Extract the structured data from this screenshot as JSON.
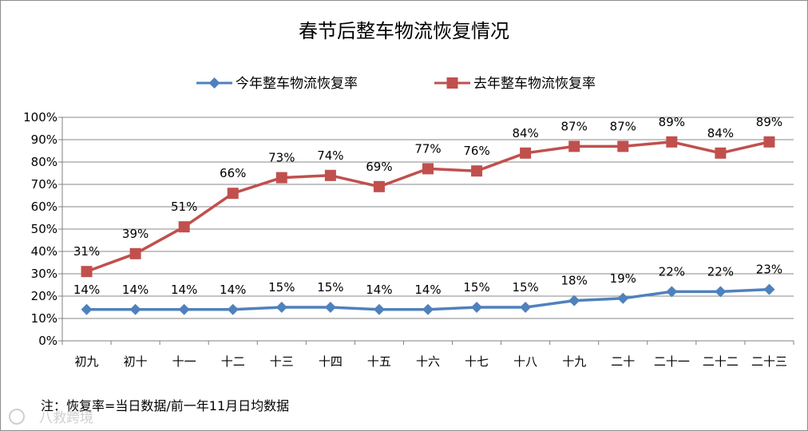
{
  "chart_data": {
    "type": "line",
    "title": "春节后整车物流恢复情况",
    "categories": [
      "初九",
      "初十",
      "十一",
      "十二",
      "十三",
      "十四",
      "十五",
      "十六",
      "十七",
      "十八",
      "十九",
      "二十",
      "二十一",
      "二十二",
      "二十三"
    ],
    "series": [
      {
        "name": "今年整车物流恢复率",
        "color": "#4f81bd",
        "marker": "diamond",
        "values": [
          14,
          14,
          14,
          14,
          15,
          15,
          14,
          14,
          15,
          15,
          18,
          19,
          22,
          22,
          23
        ],
        "labels": [
          "14%",
          "14%",
          "14%",
          "14%",
          "15%",
          "15%",
          "14%",
          "14%",
          "15%",
          "15%",
          "18%",
          "19%",
          "22%",
          "22%",
          "23%"
        ]
      },
      {
        "name": "去年整车物流恢复率",
        "color": "#c0504d",
        "marker": "square",
        "values": [
          31,
          39,
          51,
          66,
          73,
          74,
          69,
          77,
          76,
          84,
          87,
          87,
          89,
          84,
          89
        ],
        "labels": [
          "31%",
          "39%",
          "51%",
          "66%",
          "73%",
          "74%",
          "69%",
          "77%",
          "76%",
          "84%",
          "87%",
          "87%",
          "89%",
          "84%",
          "89%"
        ]
      }
    ],
    "y_ticks": [
      "0%",
      "10%",
      "20%",
      "30%",
      "40%",
      "50%",
      "60%",
      "70%",
      "80%",
      "90%",
      "100%"
    ],
    "ylim": [
      0,
      100
    ],
    "grid": "horizontal",
    "legend_position": "top",
    "note": "注：恢复率=当日数据/前一年11月日均数据"
  },
  "watermark": "八救跨境"
}
